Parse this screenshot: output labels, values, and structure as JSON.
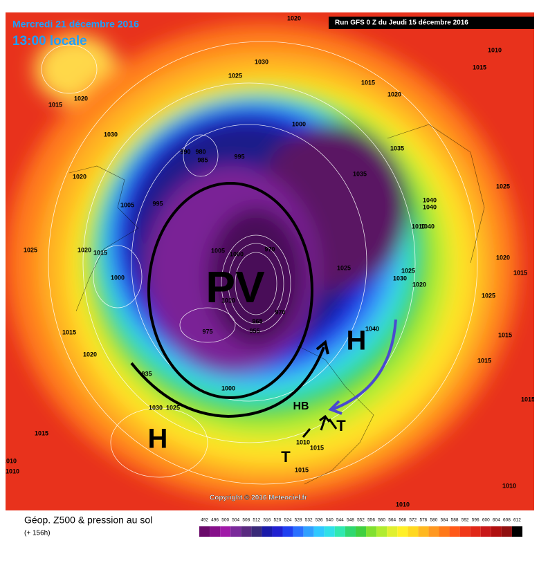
{
  "header": {
    "date": "Mercredi 21 décembre 2016",
    "time": "13:00 locale",
    "run": "Run GFS 0 Z du Jeudi 15 décembre 2016"
  },
  "pressure_labels": [
    "1020",
    "1030",
    "1025",
    "1015",
    "1020",
    "1010",
    "1015",
    "1015",
    "1020",
    "1030",
    "1000",
    "990",
    "980",
    "985",
    "995",
    "1035",
    "1035",
    "1020",
    "1005",
    "995",
    "1025",
    "1040",
    "1040",
    "1010",
    "1040",
    "1025",
    "1020",
    "1015",
    "1005",
    "1000",
    "970",
    "1025",
    "1025",
    "1030",
    "1020",
    "1020",
    "1015",
    "1000",
    "1025",
    "1010",
    "970",
    "965",
    "955",
    "975",
    "1040",
    "1015",
    "1020",
    "1015",
    "1015",
    "935",
    "1000",
    "1030",
    "1025",
    "1015",
    "1015",
    "1010",
    "1015",
    "1010",
    "1010",
    "1015",
    "1010",
    "1010"
  ],
  "annotations": [
    "PV",
    "H",
    "H",
    "HB",
    "T",
    "T"
  ],
  "copyright": "Copyright © 2016 Meteociel.fr",
  "legend": {
    "title": "Géop. Z500 & pression au sol",
    "subtitle": "(+ 156h)",
    "scale": [
      492,
      496,
      500,
      504,
      508,
      512,
      516,
      520,
      524,
      528,
      532,
      536,
      540,
      544,
      548,
      552,
      556,
      560,
      564,
      568,
      572,
      576,
      580,
      584,
      588,
      592,
      596,
      600,
      604,
      608,
      612
    ]
  }
}
